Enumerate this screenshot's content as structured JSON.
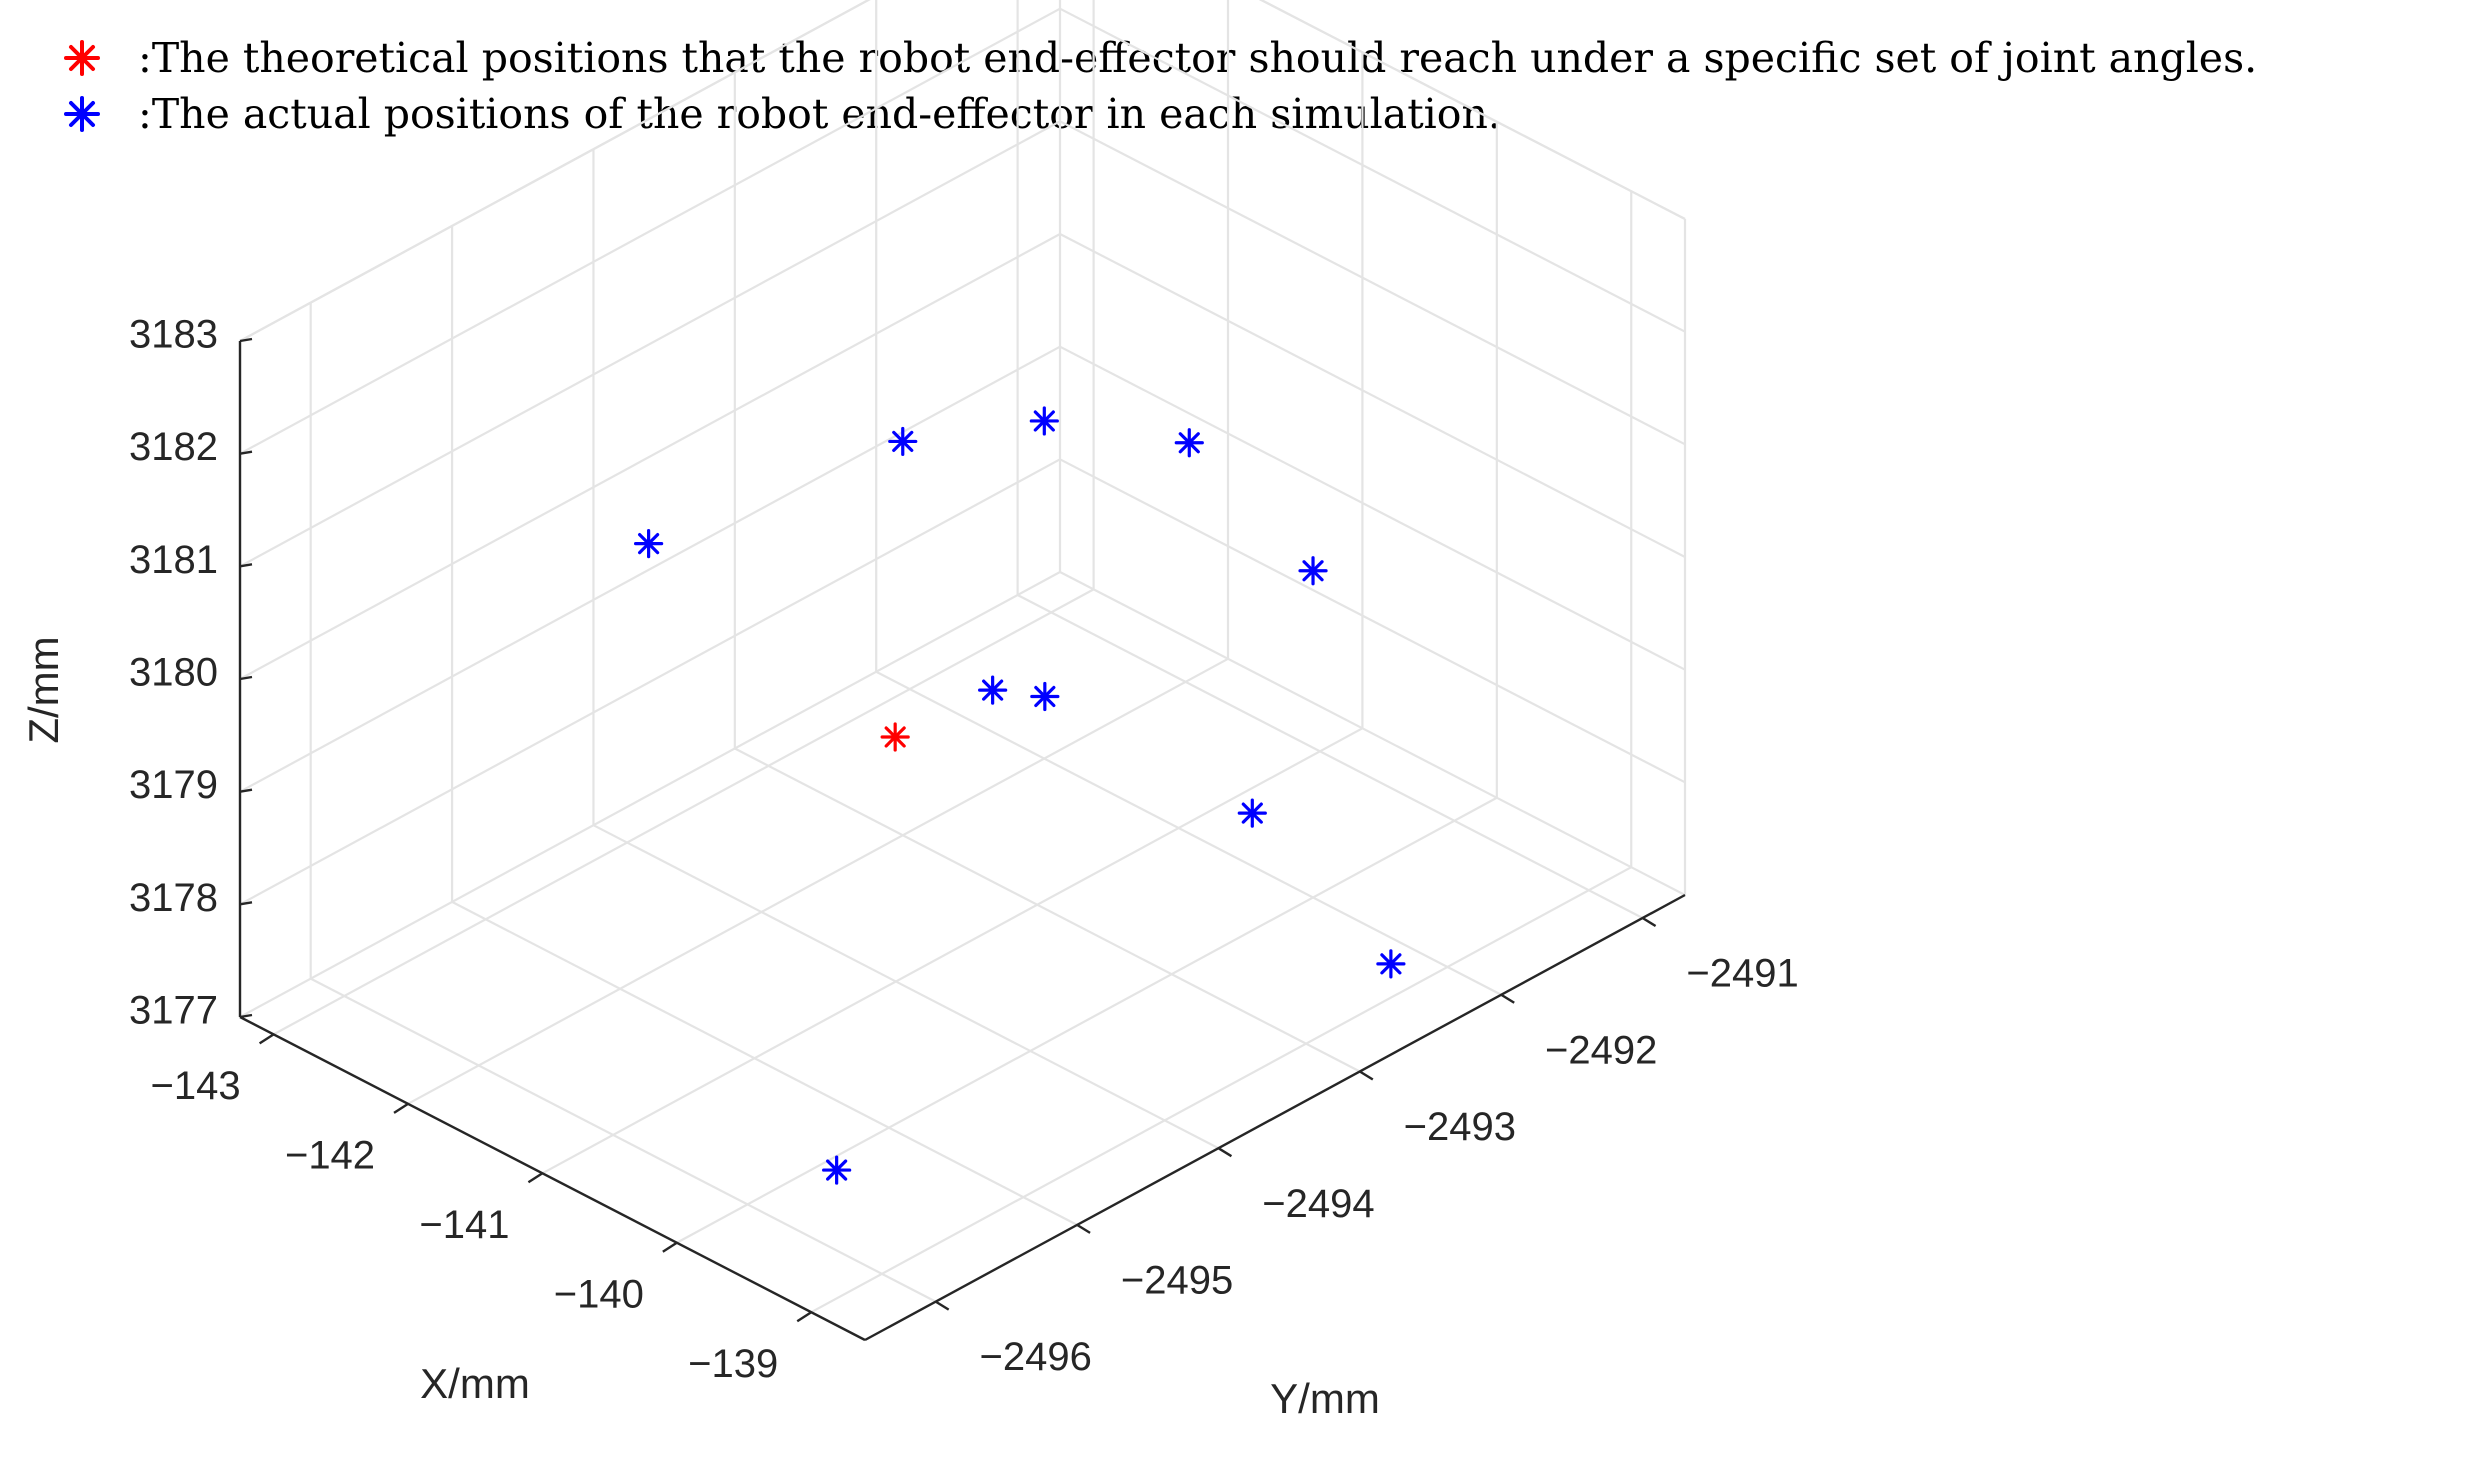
{
  "legend": [
    {
      "color": "#ff0000",
      "label": ":The theoretical positions that the robot end-effector should reach under a specific set of joint angles."
    },
    {
      "color": "#0000ff",
      "label": ":The actual positions of the robot end-effector in each simulation."
    }
  ],
  "chart_data": {
    "type": "scatter",
    "projection": "3d",
    "xlabel": "X/mm",
    "ylabel": "Y/mm",
    "zlabel": "Z/mm",
    "xlim": [
      -143.25,
      -138.6
    ],
    "ylim": [
      -2496.5,
      -2490.7
    ],
    "zlim": [
      3177,
      3183
    ],
    "x_ticks": [
      -143,
      -142,
      -141,
      -140,
      -139
    ],
    "y_ticks": [
      -2496,
      -2495,
      -2494,
      -2493,
      -2492,
      -2491
    ],
    "z_ticks": [
      3177,
      3178,
      3179,
      3180,
      3181,
      3182,
      3183
    ],
    "x_tick_labels": [
      "−143",
      "−142",
      "−141",
      "−140",
      "−139"
    ],
    "y_tick_labels": [
      "−2496",
      "−2495",
      "−2494",
      "−2493",
      "−2492",
      "−2491"
    ],
    "z_tick_labels": [
      "3177",
      "3178",
      "3179",
      "3180",
      "3181",
      "3182",
      "3183"
    ],
    "marker": "asterisk",
    "series": [
      {
        "name": "theoretical",
        "color": "#ff0000",
        "points": [
          {
            "x": -140.9,
            "y": -2494.1,
            "z": 3179.3
          }
        ]
      },
      {
        "name": "actual",
        "color": "#0000ff",
        "points": [
          {
            "x": -142.24,
            "y": -2494.57,
            "z": 3180.51
          },
          {
            "x": -140.21,
            "y": -2495.17,
            "z": 3176.61
          },
          {
            "x": -141.38,
            "y": -2493.59,
            "z": 3181.28
          },
          {
            "x": -140.28,
            "y": -2494.0,
            "z": 3180.03
          },
          {
            "x": -140.06,
            "y": -2493.84,
            "z": 3180.0
          },
          {
            "x": -141.0,
            "y": -2492.95,
            "z": 3181.26
          },
          {
            "x": -140.5,
            "y": -2492.4,
            "z": 3181.0
          },
          {
            "x": -139.4,
            "y": -2493.0,
            "z": 3178.8
          },
          {
            "x": -140.0,
            "y": -2492.0,
            "z": 3179.9
          },
          {
            "x": -139.0,
            "y": -2492.4,
            "z": 3177.3
          }
        ]
      }
    ]
  }
}
